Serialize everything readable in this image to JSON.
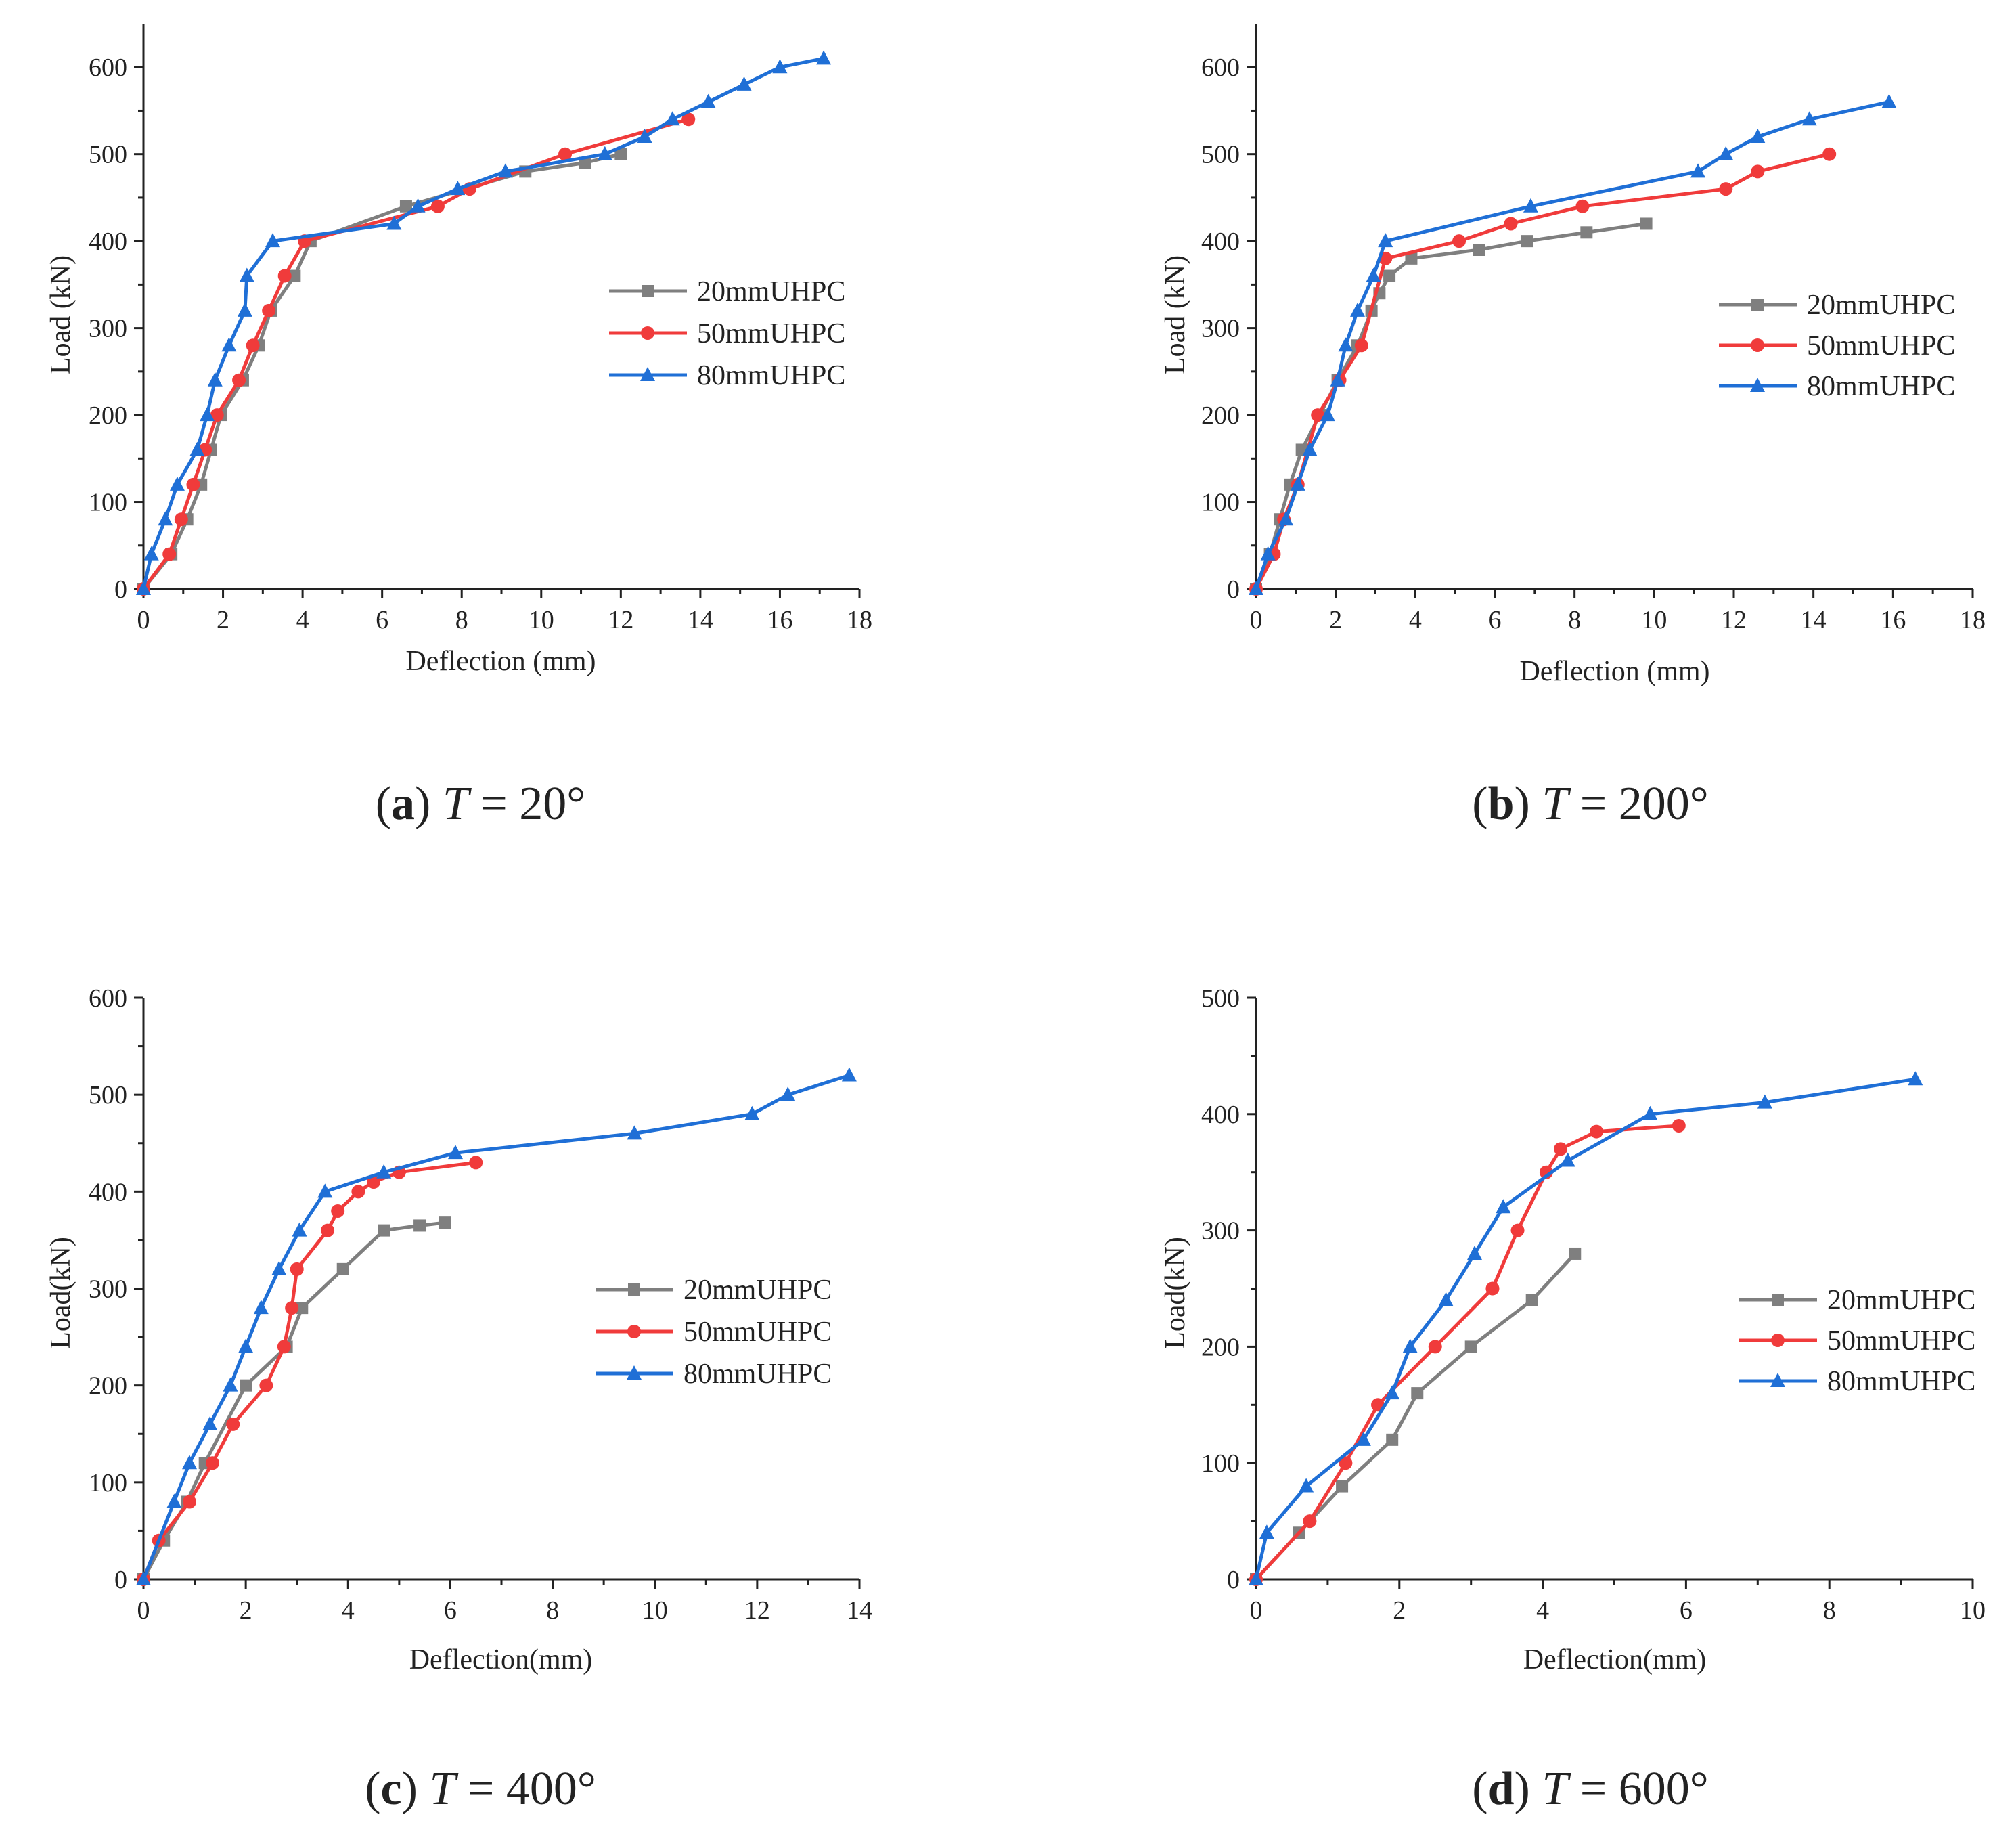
{
  "figure": {
    "panels": [
      {
        "id": "a",
        "caption": {
          "letter": "a",
          "variable": "T",
          "value": "20°"
        },
        "chart_data": {
          "type": "line",
          "title": "",
          "xlabel": "Deflection (mm)",
          "ylabel": "Load (kN)",
          "xlim": [
            0,
            18
          ],
          "ylim": [
            0,
            650
          ],
          "xticks": [
            "0",
            "2",
            "4",
            "6",
            "8",
            "10",
            "12",
            "14",
            "16",
            "18"
          ],
          "yticks": [
            "0",
            "100",
            "200",
            "300",
            "400",
            "500",
            "600"
          ],
          "xtick_values": [
            0,
            2,
            4,
            6,
            8,
            10,
            12,
            14,
            16,
            18
          ],
          "ytick_values": [
            0,
            100,
            200,
            300,
            400,
            500,
            600
          ],
          "legend_position": "center-right",
          "series": [
            {
              "name": "20mmUHPC",
              "color": "#7f7f7f",
              "marker": "square",
              "x": [
                0,
                0.7,
                1.1,
                1.45,
                1.7,
                1.95,
                2.5,
                2.9,
                3.2,
                3.8,
                4.2,
                6.6,
                9.6,
                11.1,
                12
              ],
              "y": [
                0,
                40,
                80,
                120,
                160,
                200,
                240,
                280,
                320,
                360,
                400,
                440,
                480,
                490,
                500
              ]
            },
            {
              "name": "50mmUHPC",
              "color": "#f03b3b",
              "marker": "circle",
              "x": [
                0,
                0.65,
                0.95,
                1.25,
                1.55,
                1.85,
                2.4,
                2.75,
                3.15,
                3.55,
                4.05,
                7.4,
                8.2,
                10.6,
                13.7
              ],
              "y": [
                0,
                40,
                80,
                120,
                160,
                200,
                240,
                280,
                320,
                360,
                400,
                440,
                460,
                500,
                540
              ]
            },
            {
              "name": "80mmUHPC",
              "color": "#1f6fd6",
              "marker": "triangle",
              "x": [
                0,
                0.2,
                0.55,
                0.85,
                1.35,
                1.6,
                1.8,
                2.15,
                2.55,
                2.6,
                3.25,
                6.3,
                6.9,
                7.9,
                9.1,
                11.6,
                12.6,
                13.3,
                14.2,
                15.1,
                16,
                17.1
              ],
              "y": [
                0,
                40,
                80,
                120,
                160,
                200,
                240,
                280,
                320,
                360,
                400,
                420,
                440,
                460,
                480,
                500,
                520,
                540,
                560,
                580,
                600,
                610
              ]
            }
          ]
        }
      },
      {
        "id": "b",
        "caption": {
          "letter": "b",
          "variable": "T",
          "value": "200°"
        },
        "chart_data": {
          "type": "line",
          "title": "",
          "xlabel": "Deflection (mm)",
          "ylabel": "Load (kN)",
          "xlim": [
            0,
            18
          ],
          "ylim": [
            0,
            650
          ],
          "xticks": [
            "0",
            "2",
            "4",
            "6",
            "8",
            "10",
            "12",
            "14",
            "16",
            "18"
          ],
          "yticks": [
            "0",
            "100",
            "200",
            "300",
            "400",
            "500",
            "600"
          ],
          "xtick_values": [
            0,
            2,
            4,
            6,
            8,
            10,
            12,
            14,
            16,
            18
          ],
          "ytick_values": [
            0,
            100,
            200,
            300,
            400,
            500,
            600
          ],
          "legend_position": "right",
          "series": [
            {
              "name": "20mmUHPC",
              "color": "#7f7f7f",
              "marker": "square",
              "x": [
                0,
                0.35,
                0.6,
                0.85,
                1.15,
                1.6,
                2.05,
                2.55,
                2.9,
                3.1,
                3.35,
                3.9,
                5.6,
                6.8,
                8.3,
                9.8
              ],
              "y": [
                0,
                40,
                80,
                120,
                160,
                200,
                240,
                280,
                320,
                340,
                360,
                380,
                390,
                400,
                410,
                420
              ]
            },
            {
              "name": "50mmUHPC",
              "color": "#f03b3b",
              "marker": "circle",
              "x": [
                0,
                0.45,
                0.7,
                1.05,
                1.55,
                2.1,
                2.65,
                3.25,
                5.1,
                6.4,
                8.2,
                11.8,
                12.6,
                14.4
              ],
              "y": [
                0,
                40,
                80,
                120,
                200,
                240,
                280,
                380,
                400,
                420,
                440,
                460,
                480,
                500
              ]
            },
            {
              "name": "80mmUHPC",
              "color": "#1f6fd6",
              "marker": "triangle",
              "x": [
                0,
                0.3,
                0.75,
                1.05,
                1.35,
                1.8,
                2.05,
                2.25,
                2.55,
                2.95,
                3.25,
                6.9,
                11.1,
                11.8,
                12.6,
                13.9,
                15.9
              ],
              "y": [
                0,
                40,
                80,
                120,
                160,
                200,
                240,
                280,
                320,
                360,
                400,
                440,
                480,
                500,
                520,
                540,
                560
              ]
            }
          ]
        }
      },
      {
        "id": "c",
        "caption": {
          "letter": "c",
          "variable": "T",
          "value": "400°"
        },
        "chart_data": {
          "type": "line",
          "title": "",
          "xlabel": "Deflection(mm)",
          "ylabel": "Load(kN)",
          "xlim": [
            0,
            14
          ],
          "ylim": [
            0,
            600
          ],
          "xticks": [
            "0",
            "2",
            "4",
            "6",
            "8",
            "10",
            "12",
            "14"
          ],
          "yticks": [
            "0",
            "100",
            "200",
            "300",
            "400",
            "500",
            "600"
          ],
          "xtick_values": [
            0,
            2,
            4,
            6,
            8,
            10,
            12,
            14
          ],
          "ytick_values": [
            0,
            100,
            200,
            300,
            400,
            500,
            600
          ],
          "legend_position": "center-right",
          "series": [
            {
              "name": "20mmUHPC",
              "color": "#7f7f7f",
              "marker": "square",
              "x": [
                0,
                0.4,
                0.85,
                1.2,
                2.0,
                2.8,
                3.1,
                3.9,
                4.7,
                5.4,
                5.9
              ],
              "y": [
                0,
                40,
                80,
                120,
                200,
                240,
                280,
                320,
                360,
                365,
                368
              ]
            },
            {
              "name": "50mmUHPC",
              "color": "#f03b3b",
              "marker": "circle",
              "x": [
                0,
                0.3,
                0.9,
                1.35,
                1.75,
                2.4,
                2.75,
                2.9,
                3.0,
                3.6,
                3.8,
                4.2,
                4.5,
                5.0,
                6.5
              ],
              "y": [
                0,
                40,
                80,
                120,
                160,
                200,
                240,
                280,
                320,
                360,
                380,
                400,
                410,
                420,
                430
              ]
            },
            {
              "name": "80mmUHPC",
              "color": "#1f6fd6",
              "marker": "triangle",
              "x": [
                0,
                0.6,
                0.9,
                1.3,
                1.7,
                2.0,
                2.3,
                2.65,
                3.05,
                3.55,
                4.7,
                6.1,
                9.6,
                11.9,
                12.6,
                13.8
              ],
              "y": [
                0,
                80,
                120,
                160,
                200,
                240,
                280,
                320,
                360,
                400,
                420,
                440,
                460,
                480,
                500,
                520
              ]
            }
          ]
        }
      },
      {
        "id": "d",
        "caption": {
          "letter": "d",
          "variable": "T",
          "value": "600°"
        },
        "chart_data": {
          "type": "line",
          "title": "",
          "xlabel": "Deflection(mm)",
          "ylabel": "Load(kN)",
          "xlim": [
            0,
            10
          ],
          "ylim": [
            0,
            500
          ],
          "xticks": [
            "0",
            "2",
            "4",
            "6",
            "8",
            "10"
          ],
          "yticks": [
            "0",
            "100",
            "200",
            "300",
            "400",
            "500"
          ],
          "xtick_values": [
            0,
            2,
            4,
            6,
            8,
            10
          ],
          "ytick_values": [
            0,
            100,
            200,
            300,
            400,
            500
          ],
          "legend_position": "right",
          "series": [
            {
              "name": "20mmUHPC",
              "color": "#7f7f7f",
              "marker": "square",
              "x": [
                0,
                0.6,
                1.2,
                1.9,
                2.25,
                3.0,
                3.85,
                4.45
              ],
              "y": [
                0,
                40,
                80,
                120,
                160,
                200,
                240,
                280
              ]
            },
            {
              "name": "50mmUHPC",
              "color": "#f03b3b",
              "marker": "circle",
              "x": [
                0,
                0.75,
                1.25,
                1.7,
                2.5,
                3.3,
                3.65,
                4.05,
                4.25,
                4.75,
                5.9
              ],
              "y": [
                0,
                50,
                100,
                150,
                200,
                250,
                300,
                350,
                370,
                385,
                390
              ]
            },
            {
              "name": "80mmUHPC",
              "color": "#1f6fd6",
              "marker": "triangle",
              "x": [
                0,
                0.15,
                0.7,
                1.5,
                1.9,
                2.15,
                2.65,
                3.05,
                3.45,
                4.35,
                5.5,
                7.1,
                9.2
              ],
              "y": [
                0,
                40,
                80,
                120,
                160,
                200,
                240,
                280,
                320,
                360,
                400,
                410,
                430
              ]
            }
          ]
        }
      }
    ]
  }
}
